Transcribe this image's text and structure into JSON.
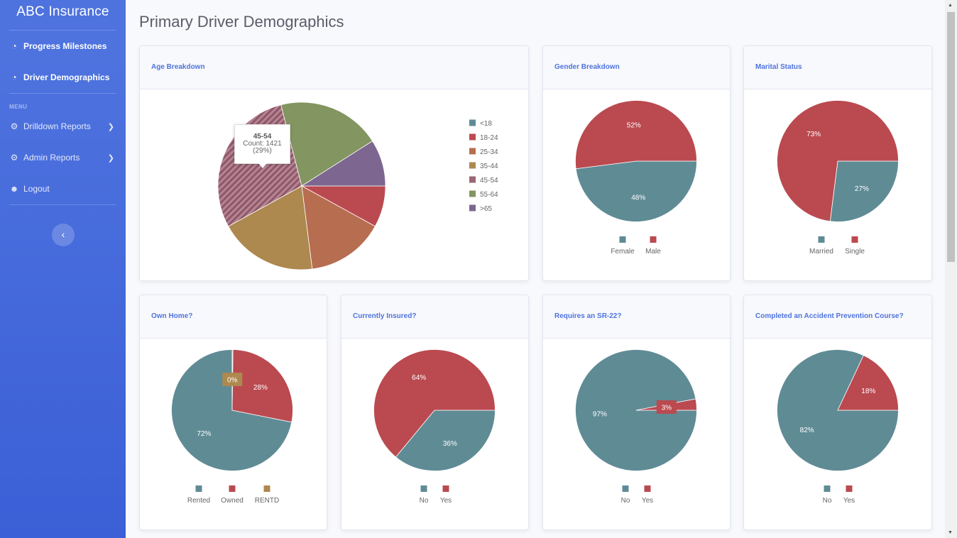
{
  "brand": "ABC Insurance",
  "nav": {
    "progress": "Progress Milestones",
    "demographics": "Driver Demographics",
    "menu_heading": "MENU",
    "drilldown": "Drilldown Reports",
    "admin": "Admin Reports",
    "logout": "Logout"
  },
  "page_title": "Primary Driver Demographics",
  "colors": {
    "teal": "#5f8b95",
    "red": "#ba4a50",
    "orange": "#b76d50",
    "gold": "#ad884f",
    "mauve": "#9c6775",
    "green": "#839560",
    "purple": "#7d6791"
  },
  "cards": {
    "age": {
      "title": "Age Breakdown"
    },
    "gender": {
      "title": "Gender Breakdown"
    },
    "marital": {
      "title": "Marital Status"
    },
    "home": {
      "title": "Own Home?"
    },
    "insured": {
      "title": "Currently Insured?"
    },
    "sr22": {
      "title": "Requires an SR-22?"
    },
    "course": {
      "title": "Completed an Accident Prevention Course?"
    }
  },
  "tooltip": {
    "title": "45-54",
    "count": "Count: 1421",
    "pct": "(29%)"
  },
  "chart_data": [
    {
      "type": "pie",
      "title": "Age Breakdown",
      "categories": [
        "<18",
        "18-24",
        "25-34",
        "35-44",
        "45-54",
        "55-64",
        ">65"
      ],
      "values": [
        0,
        8,
        15,
        19,
        29,
        20,
        9
      ],
      "colors": [
        "#5f8b95",
        "#ba4a50",
        "#b76d50",
        "#ad884f",
        "#9c6775",
        "#839560",
        "#7d6791"
      ],
      "legend": "right"
    },
    {
      "type": "pie",
      "title": "Gender Breakdown",
      "categories": [
        "Female",
        "Male"
      ],
      "values": [
        48,
        52
      ],
      "labels": [
        "48%",
        "52%"
      ],
      "colors": [
        "#5f8b95",
        "#ba4a50"
      ],
      "legend": "bottom"
    },
    {
      "type": "pie",
      "title": "Marital Status",
      "categories": [
        "Married",
        "Single"
      ],
      "values": [
        27,
        73
      ],
      "labels": [
        "27%",
        "73%"
      ],
      "colors": [
        "#5f8b95",
        "#ba4a50"
      ],
      "legend": "bottom"
    },
    {
      "type": "pie",
      "title": "Own Home?",
      "categories": [
        "Rented",
        "Owned",
        "RENTD"
      ],
      "values": [
        72,
        28,
        0.2
      ],
      "labels": [
        "72%",
        "28%",
        "0%"
      ],
      "colors": [
        "#5f8b95",
        "#ba4a50",
        "#ad884f"
      ],
      "legend": "bottom"
    },
    {
      "type": "pie",
      "title": "Currently Insured?",
      "categories": [
        "No",
        "Yes"
      ],
      "values": [
        36,
        64
      ],
      "labels": [
        "36%",
        "64%"
      ],
      "colors": [
        "#5f8b95",
        "#ba4a50"
      ],
      "legend": "bottom"
    },
    {
      "type": "pie",
      "title": "Requires an SR-22?",
      "categories": [
        "No",
        "Yes"
      ],
      "values": [
        97,
        3
      ],
      "labels": [
        "97%",
        "3%"
      ],
      "colors": [
        "#5f8b95",
        "#ba4a50"
      ],
      "legend": "bottom"
    },
    {
      "type": "pie",
      "title": "Completed an Accident Prevention Course?",
      "categories": [
        "No",
        "Yes"
      ],
      "values": [
        82,
        18
      ],
      "labels": [
        "82%",
        "18%"
      ],
      "colors": [
        "#5f8b95",
        "#ba4a50"
      ],
      "legend": "bottom"
    }
  ]
}
